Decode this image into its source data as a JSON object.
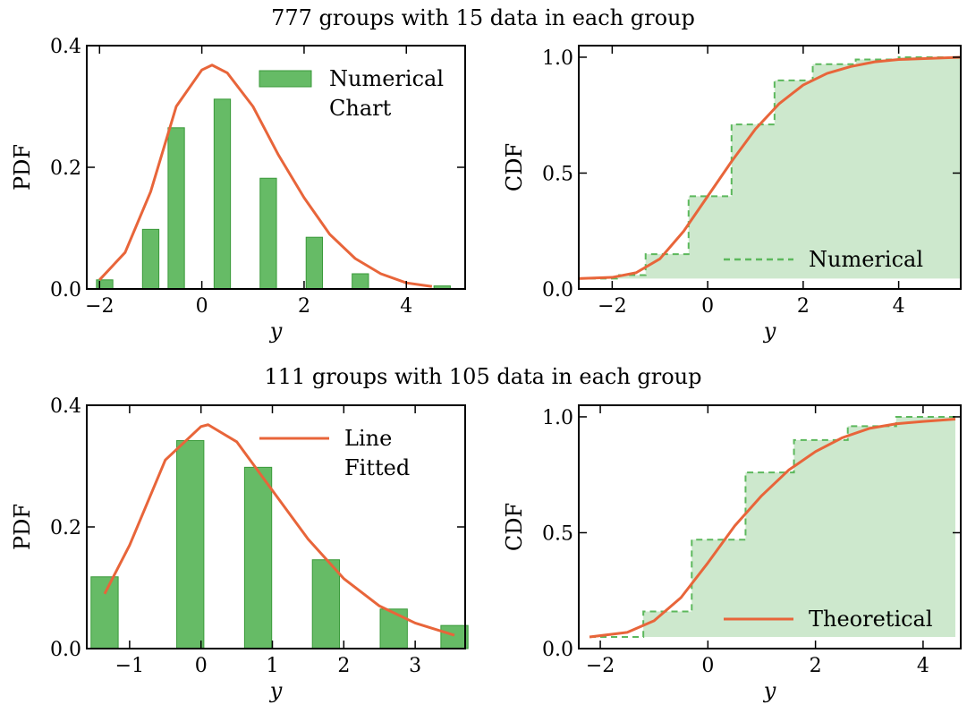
{
  "colors": {
    "bar": "#66bb66",
    "bar_edge": "#3a9a3a",
    "fill": "#cde8cd",
    "step": "#5cb85c",
    "curve": "#e8653a"
  },
  "chart_data": [
    {
      "type": "bar",
      "title": "777 groups with 15 data in each group",
      "xlabel": "y",
      "ylabel": "PDF",
      "xlim": [
        -2.25,
        5.15
      ],
      "ylim": [
        0,
        0.4
      ],
      "xticks": [
        -2,
        0,
        2,
        4
      ],
      "xtick_labels": [
        "−2",
        "0",
        "2",
        "4"
      ],
      "yticks": [
        0,
        0.2,
        0.4
      ],
      "ytick_labels": [
        "0.0",
        "0.2",
        "0.4"
      ],
      "bar_width": 0.32,
      "bars": {
        "x": [
          -1.9,
          -1.0,
          -0.5,
          0.4,
          1.3,
          2.2,
          3.1,
          4.7
        ],
        "values": [
          0.015,
          0.098,
          0.265,
          0.312,
          0.182,
          0.085,
          0.025,
          0.005
        ]
      },
      "curve": {
        "x": [
          -2.0,
          -1.5,
          -1.0,
          -0.5,
          0.0,
          0.2,
          0.5,
          1.0,
          1.5,
          2.0,
          2.5,
          3.0,
          3.5,
          4.0,
          4.5
        ],
        "y": [
          0.015,
          0.06,
          0.16,
          0.3,
          0.36,
          0.368,
          0.355,
          0.3,
          0.22,
          0.15,
          0.09,
          0.05,
          0.025,
          0.01,
          0.004
        ]
      },
      "legend": {
        "labels": [
          "Numerical",
          "Chart"
        ],
        "position": "upper right",
        "swatch": "bar"
      }
    },
    {
      "type": "line",
      "xlabel": "y",
      "ylabel": "CDF",
      "xlim": [
        -2.7,
        5.3
      ],
      "ylim": [
        0,
        1.05
      ],
      "xticks": [
        -2,
        0,
        2,
        4
      ],
      "xtick_labels": [
        "−2",
        "0",
        "2",
        "4"
      ],
      "yticks": [
        0,
        0.5,
        1.0
      ],
      "ytick_labels": [
        "0.0",
        "0.5",
        "1.0"
      ],
      "step": {
        "x": [
          -2.7,
          -1.9,
          -1.3,
          -0.4,
          0.5,
          1.4,
          2.2,
          3.1,
          4.0,
          5.3
        ],
        "y": [
          0.045,
          0.06,
          0.15,
          0.4,
          0.71,
          0.9,
          0.97,
          0.99,
          1.0,
          1.0
        ]
      },
      "curve": {
        "x": [
          -2.7,
          -2.0,
          -1.5,
          -1.0,
          -0.5,
          0.0,
          0.5,
          1.0,
          1.5,
          2.0,
          2.5,
          3.0,
          3.5,
          4.0,
          5.3
        ],
        "y": [
          0.045,
          0.05,
          0.07,
          0.13,
          0.25,
          0.4,
          0.55,
          0.69,
          0.8,
          0.88,
          0.93,
          0.96,
          0.98,
          0.99,
          1.0
        ]
      },
      "legend": {
        "labels": [
          "Numerical"
        ],
        "position": "lower right",
        "swatch": "dashed"
      }
    },
    {
      "type": "bar",
      "title": "111 groups with 105 data in each group",
      "xlabel": "y",
      "ylabel": "PDF",
      "xlim": [
        -1.6,
        3.7
      ],
      "ylim": [
        0,
        0.4
      ],
      "xticks": [
        -1,
        0,
        1,
        2,
        3
      ],
      "xtick_labels": [
        "−1",
        "0",
        "1",
        "2",
        "3"
      ],
      "yticks": [
        0,
        0.2,
        0.4
      ],
      "ytick_labels": [
        "0.0",
        "0.2",
        "0.4"
      ],
      "bar_width": 0.38,
      "bars": {
        "x": [
          -1.35,
          -0.15,
          0.8,
          1.75,
          2.7,
          3.55
        ],
        "values": [
          0.118,
          0.342,
          0.298,
          0.146,
          0.065,
          0.038
        ]
      },
      "curve": {
        "x": [
          -1.35,
          -1.0,
          -0.5,
          0.0,
          0.1,
          0.5,
          1.0,
          1.5,
          2.0,
          2.5,
          3.0,
          3.55
        ],
        "y": [
          0.09,
          0.17,
          0.31,
          0.365,
          0.368,
          0.34,
          0.26,
          0.18,
          0.115,
          0.07,
          0.042,
          0.022
        ]
      },
      "legend": {
        "labels": [
          "Line",
          "Fitted"
        ],
        "position": "upper right",
        "swatch": "line"
      }
    },
    {
      "type": "line",
      "xlabel": "y",
      "ylabel": "CDF",
      "xlim": [
        -2.4,
        4.7
      ],
      "ylim": [
        0,
        1.05
      ],
      "xticks": [
        -2,
        0,
        2,
        4
      ],
      "xtick_labels": [
        "−2",
        "0",
        "2",
        "4"
      ],
      "yticks": [
        0,
        0.5,
        1.0
      ],
      "ytick_labels": [
        "0.0",
        "0.5",
        "1.0"
      ],
      "step": {
        "x": [
          -2.2,
          -1.2,
          -0.3,
          0.7,
          1.6,
          2.6,
          3.5,
          4.6
        ],
        "y": [
          0.05,
          0.16,
          0.47,
          0.76,
          0.9,
          0.96,
          1.0,
          1.0
        ]
      },
      "curve": {
        "x": [
          -2.2,
          -1.5,
          -1.0,
          -0.5,
          0.0,
          0.5,
          1.0,
          1.5,
          2.0,
          2.5,
          3.0,
          3.5,
          4.0,
          4.6
        ],
        "y": [
          0.05,
          0.07,
          0.12,
          0.22,
          0.37,
          0.53,
          0.66,
          0.77,
          0.85,
          0.91,
          0.95,
          0.97,
          0.98,
          0.99
        ]
      },
      "legend": {
        "labels": [
          "Theoretical"
        ],
        "position": "lower right",
        "swatch": "line"
      }
    }
  ]
}
